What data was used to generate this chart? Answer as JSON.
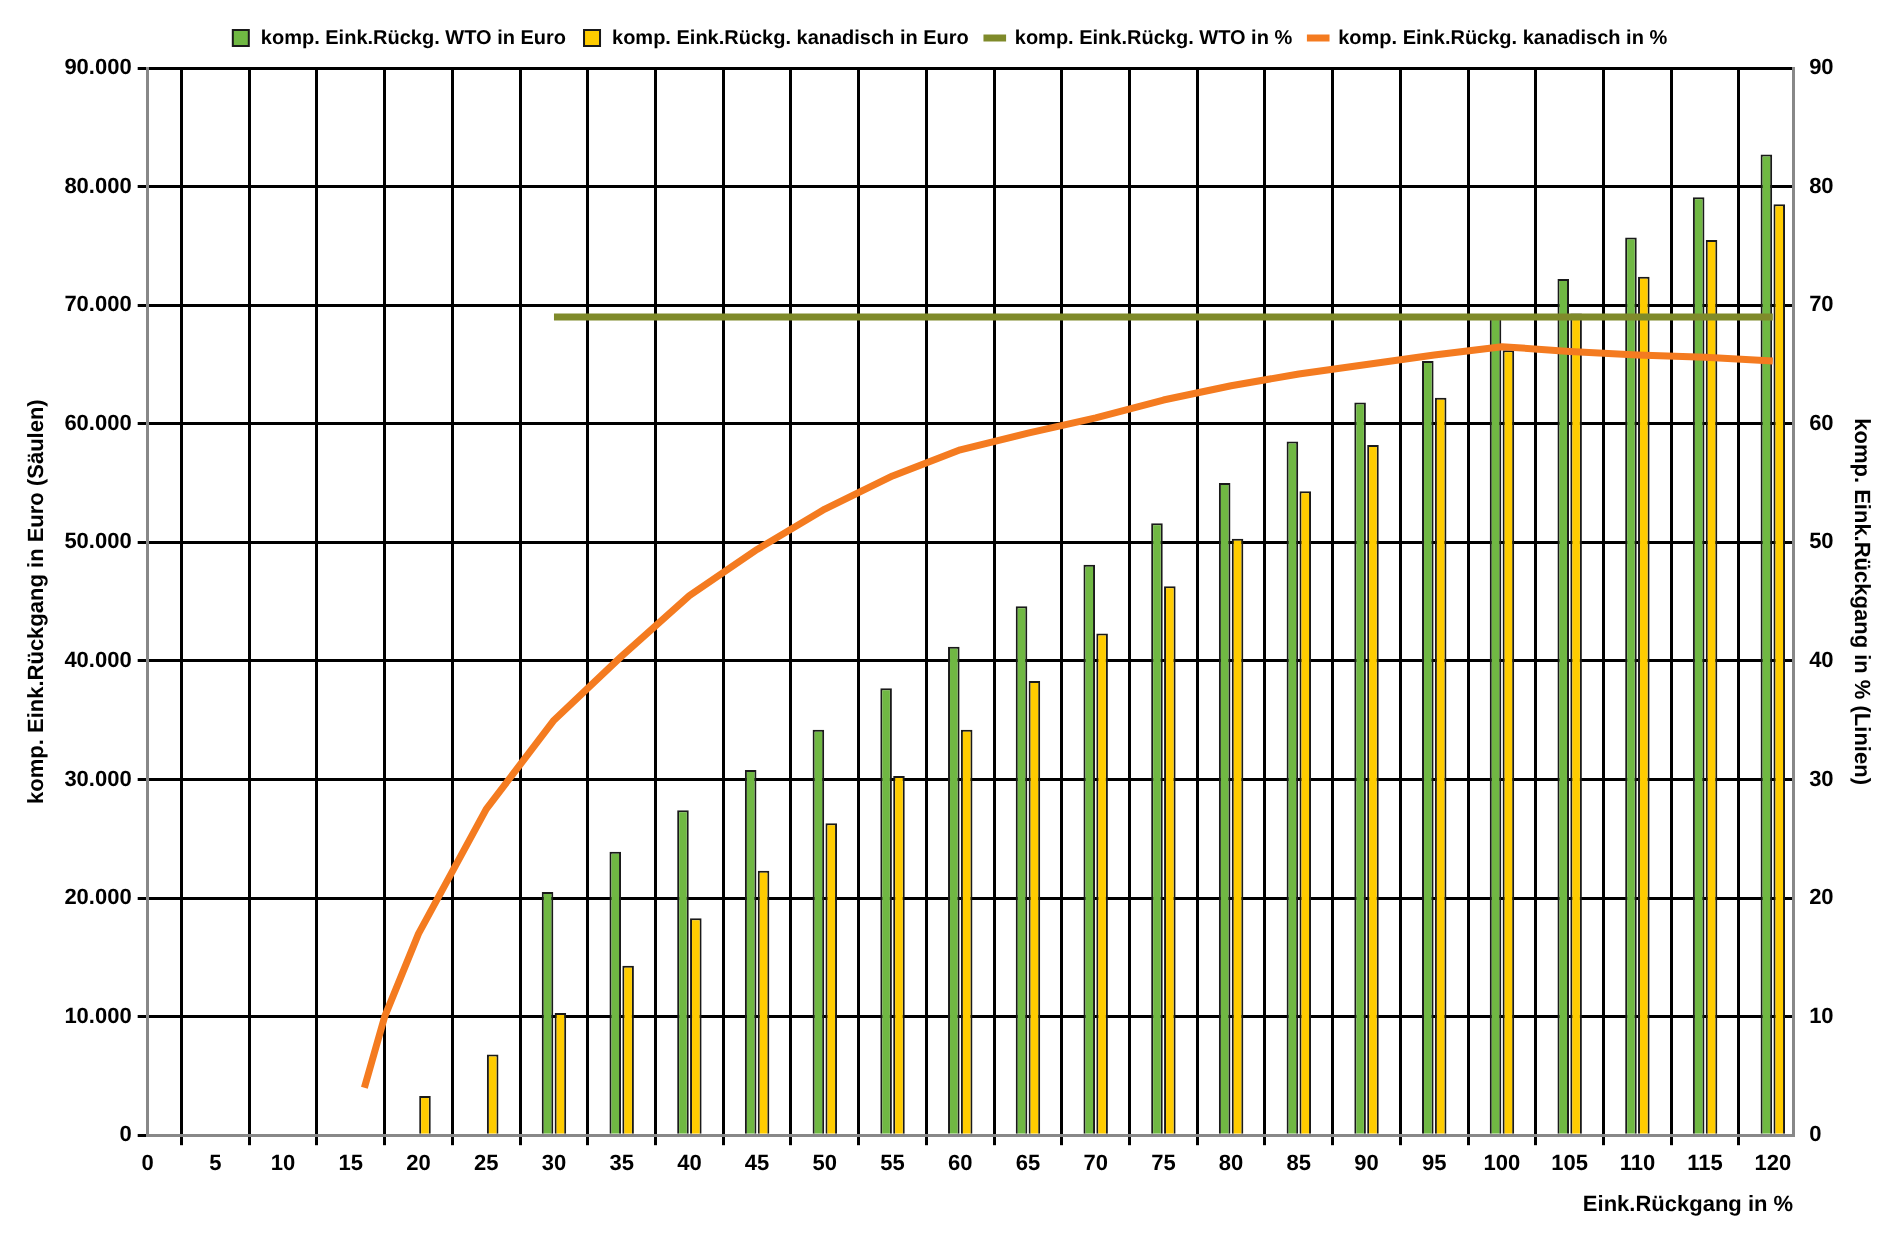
{
  "chart_data": {
    "type": "bar",
    "x": [
      20,
      25,
      30,
      35,
      40,
      45,
      50,
      55,
      60,
      65,
      70,
      75,
      80,
      85,
      90,
      95,
      100,
      105,
      110,
      115,
      120
    ],
    "series": [
      {
        "name": "komp. Eink.Rückg. WTO in Euro",
        "color": "#70b843",
        "values": [
          null,
          null,
          20500,
          23900,
          27400,
          30800,
          34200,
          37700,
          41200,
          44600,
          48100,
          51600,
          55000,
          58500,
          61800,
          65300,
          69000,
          72200,
          75700,
          79100,
          82700
        ]
      },
      {
        "name": "komp. Eink.Rückg. kanadisch in Euro",
        "color": "#ffcc00",
        "values": [
          3300,
          6800,
          10300,
          14300,
          18300,
          22300,
          26300,
          30300,
          34200,
          38300,
          42300,
          46300,
          50300,
          54300,
          58200,
          62200,
          66200,
          69300,
          72400,
          75500,
          78500
        ]
      },
      {
        "name": "komp. Eink.Rückg. WTO in %",
        "type": "line",
        "axis": "y2",
        "color": "#7f8a2a",
        "x": [
          30,
          35,
          40,
          45,
          50,
          55,
          60,
          65,
          70,
          75,
          80,
          85,
          90,
          95,
          100,
          105,
          110,
          115,
          120
        ],
        "values": [
          69,
          69,
          69,
          69,
          69,
          69,
          69,
          69,
          69,
          69,
          69,
          69,
          69,
          69,
          69,
          69,
          69,
          69,
          69
        ]
      },
      {
        "name": "komp. Eink.Rückg. kanadisch in %",
        "type": "line",
        "axis": "y2",
        "color": "#f47b20",
        "x": [
          16,
          17.5,
          20,
          25,
          30,
          35,
          40,
          45,
          50,
          55,
          60,
          65,
          70,
          75,
          80,
          85,
          90,
          95,
          100,
          105,
          110,
          115,
          120
        ],
        "values": [
          4,
          10,
          17,
          27.5,
          35,
          40.4,
          45.5,
          49.4,
          52.8,
          55.6,
          57.8,
          59.2,
          60.5,
          62,
          63.2,
          64.2,
          65,
          65.8,
          66.5,
          66.1,
          65.8,
          65.6,
          65.3
        ]
      }
    ],
    "xlabel": "Eink.Rückgang in %",
    "ylabel": "komp. Eink.Rückgang in Euro (Säulen)",
    "y2label": "komp. Eink.Rückgang in % (Linien)",
    "xlim": [
      0,
      121.5
    ],
    "xticks": [
      0,
      5,
      10,
      15,
      20,
      25,
      30,
      35,
      40,
      45,
      50,
      55,
      60,
      65,
      70,
      75,
      80,
      85,
      90,
      95,
      100,
      105,
      110,
      115,
      120
    ],
    "ylim": [
      0,
      90000
    ],
    "yticks": [
      0,
      {
        "value": 10000,
        "label": "10.000"
      },
      {
        "value": 20000,
        "label": "20.000"
      },
      {
        "value": 30000,
        "label": "30.000"
      },
      {
        "value": 40000,
        "label": "40.000"
      },
      {
        "value": 50000,
        "label": "50.000"
      },
      {
        "value": 60000,
        "label": "60.000"
      },
      {
        "value": 70000,
        "label": "70.000"
      },
      {
        "value": 80000,
        "label": "80.000"
      },
      {
        "value": 90000,
        "label": "90.000"
      }
    ],
    "y2lim": [
      0,
      90
    ],
    "y2ticks": [
      0,
      10,
      20,
      30,
      40,
      50,
      60,
      70,
      80,
      90
    ],
    "grid": true,
    "legend": "top",
    "marker": "none",
    "line_style": "solid"
  }
}
